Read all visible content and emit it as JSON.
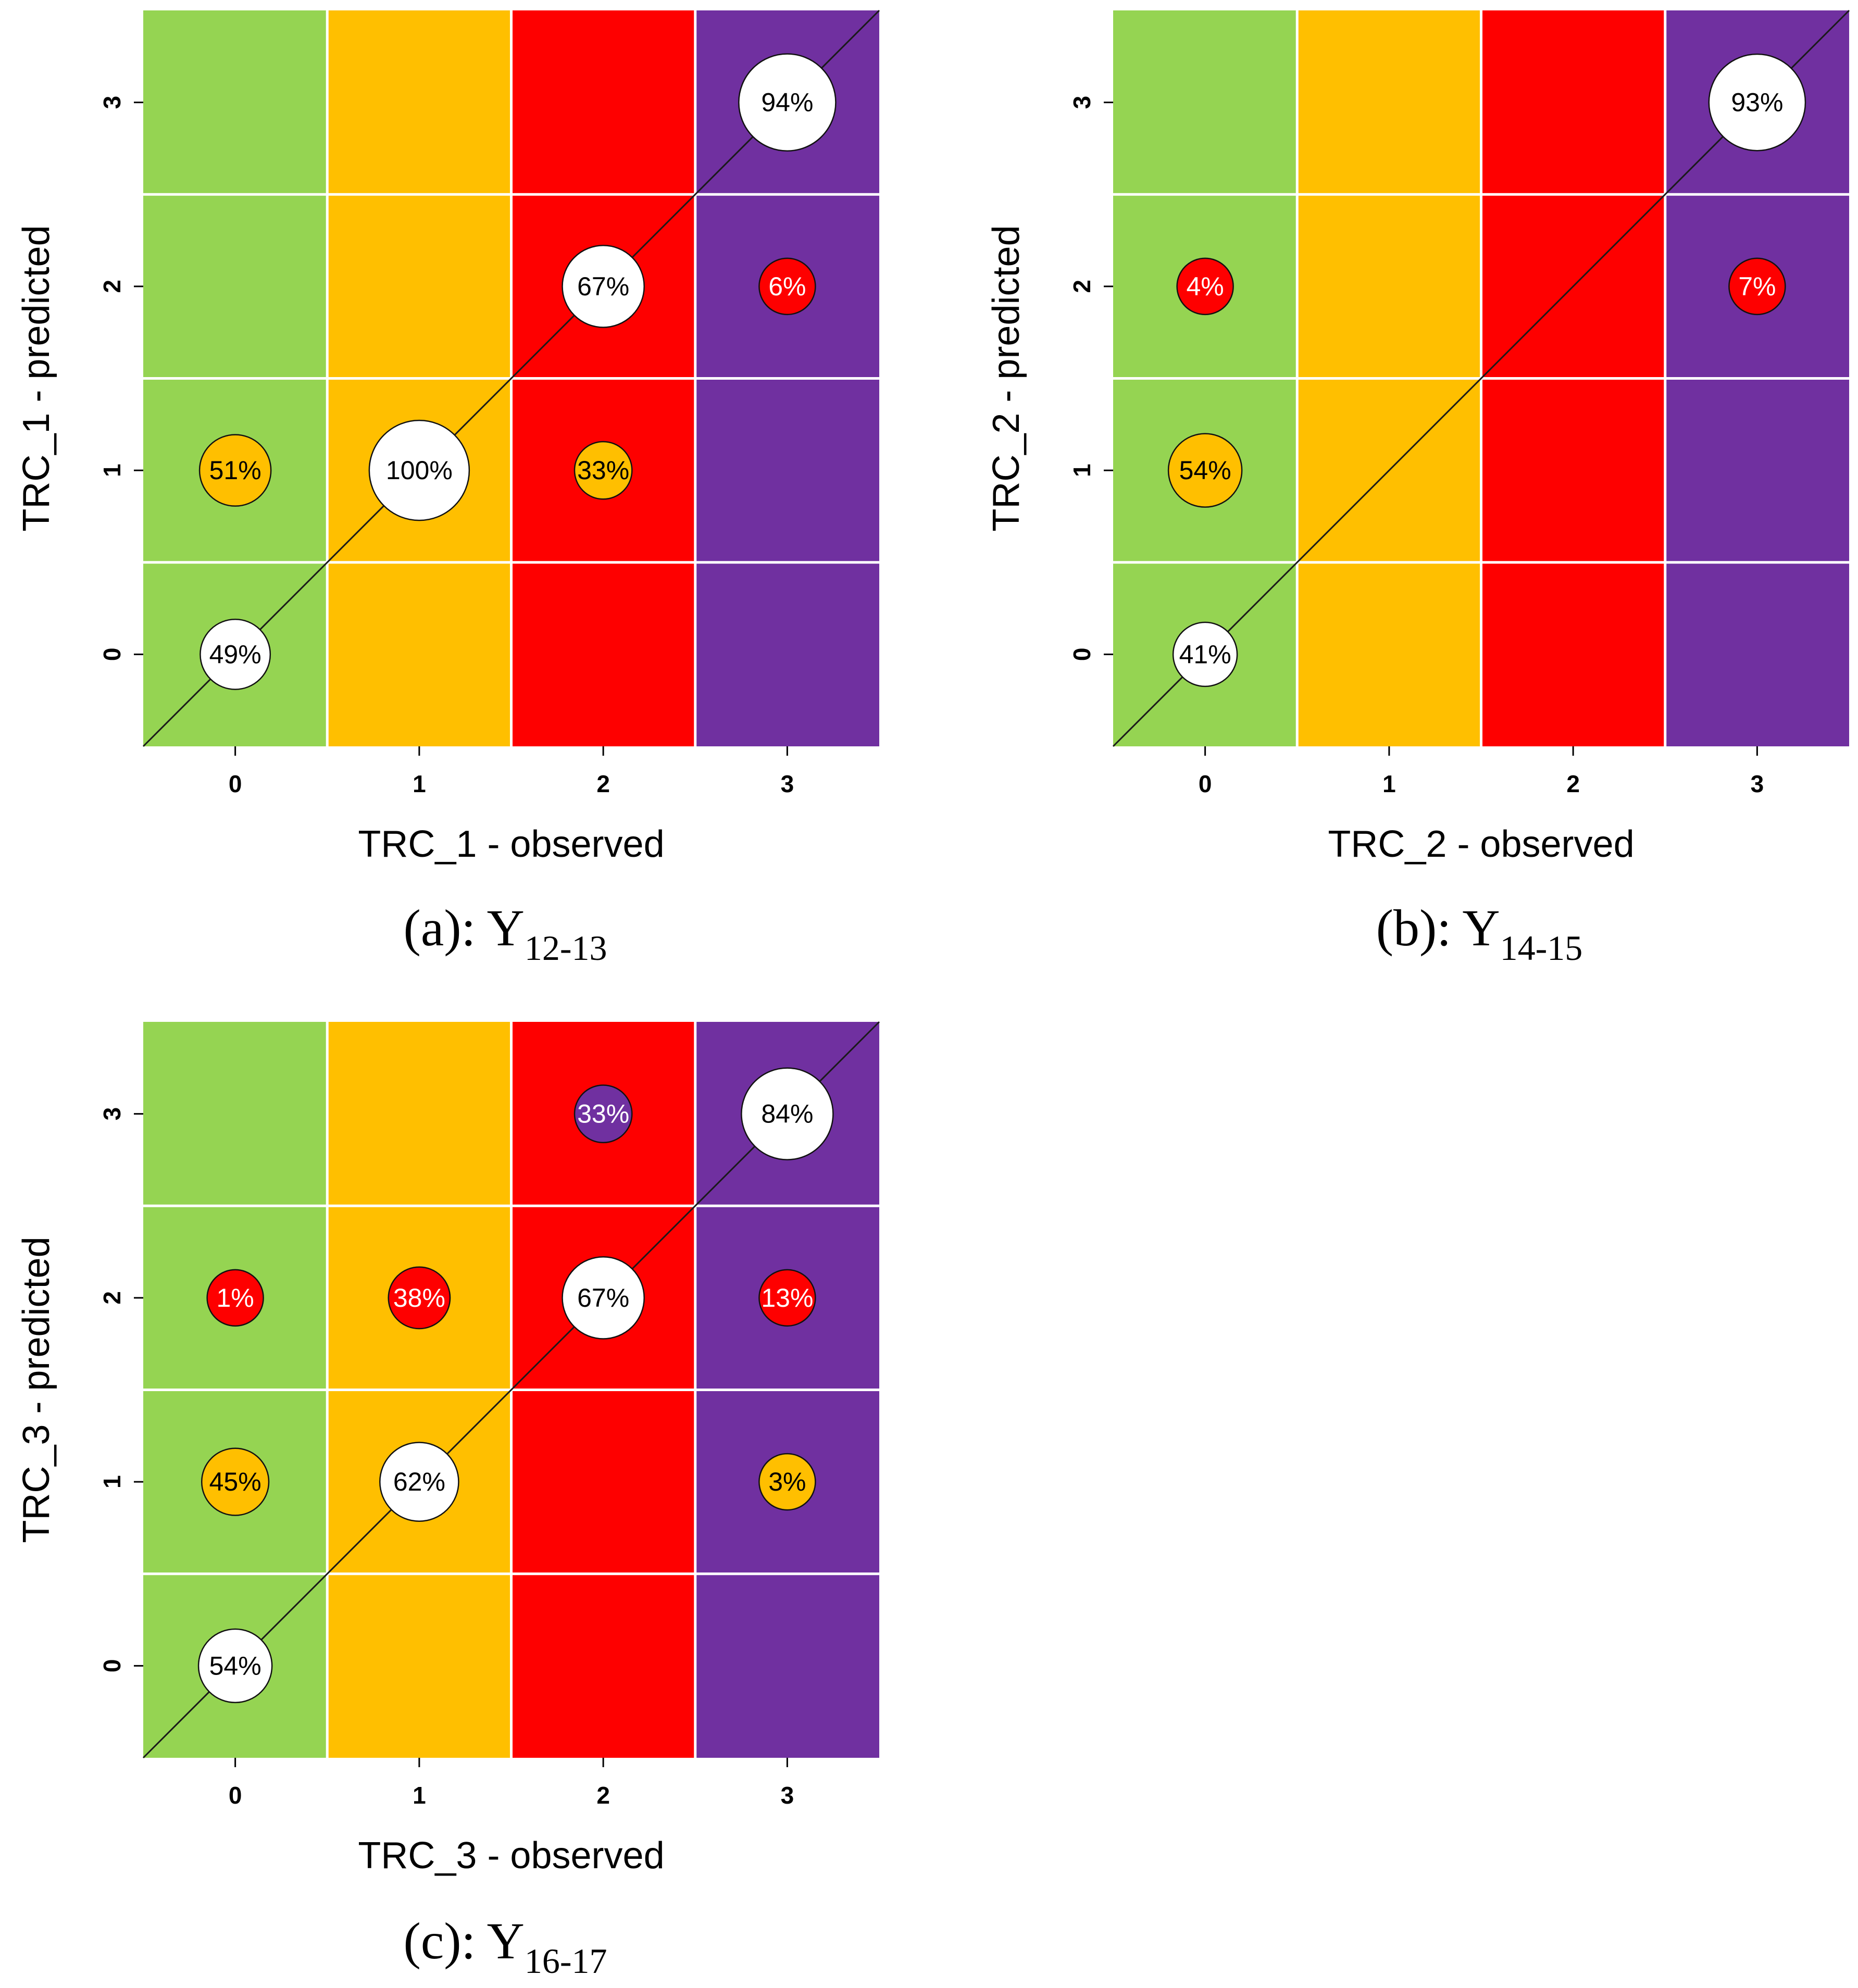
{
  "colors": {
    "0": "#95d452",
    "1": "#ffbf00",
    "2": "#fe0000",
    "3": "#7030a0",
    "white": "#ffffff",
    "gridline": "#ffffff"
  },
  "chart_data": [
    {
      "type": "heatmap",
      "caption": "(a): Y",
      "caption_sub": "12-13",
      "xlabel": "TRC_1 - observed",
      "ylabel": "TRC_1 - predicted",
      "x_ticks": [
        "0",
        "1",
        "2",
        "3"
      ],
      "y_ticks": [
        "0",
        "1",
        "2",
        "3"
      ],
      "xlim": [
        -0.5,
        3.5
      ],
      "ylim": [
        -0.5,
        3.5
      ],
      "column_fill_by_observed_class": [
        "0",
        "1",
        "2",
        "3"
      ],
      "diagonal_line": true,
      "points": [
        {
          "observed": 0,
          "predicted": 0,
          "value": 49,
          "label": "49%",
          "fill": "white"
        },
        {
          "observed": 0,
          "predicted": 1,
          "value": 51,
          "label": "51%",
          "fill": "1"
        },
        {
          "observed": 1,
          "predicted": 1,
          "value": 100,
          "label": "100%",
          "fill": "white"
        },
        {
          "observed": 2,
          "predicted": 1,
          "value": 33,
          "label": "33%",
          "fill": "1"
        },
        {
          "observed": 2,
          "predicted": 2,
          "value": 67,
          "label": "67%",
          "fill": "white"
        },
        {
          "observed": 3,
          "predicted": 2,
          "value": 6,
          "label": "6%",
          "fill": "2"
        },
        {
          "observed": 3,
          "predicted": 3,
          "value": 94,
          "label": "94%",
          "fill": "white"
        }
      ]
    },
    {
      "type": "heatmap",
      "caption": "(b): Y",
      "caption_sub": "14-15",
      "xlabel": "TRC_2 - observed",
      "ylabel": "TRC_2 - predicted",
      "x_ticks": [
        "0",
        "1",
        "2",
        "3"
      ],
      "y_ticks": [
        "0",
        "1",
        "2",
        "3"
      ],
      "xlim": [
        -0.5,
        3.5
      ],
      "ylim": [
        -0.5,
        3.5
      ],
      "column_fill_by_observed_class": [
        "0",
        "1",
        "2",
        "3"
      ],
      "diagonal_line": true,
      "points": [
        {
          "observed": 0,
          "predicted": 0,
          "value": 41,
          "label": "41%",
          "fill": "white"
        },
        {
          "observed": 0,
          "predicted": 1,
          "value": 54,
          "label": "54%",
          "fill": "1"
        },
        {
          "observed": 0,
          "predicted": 2,
          "value": 4,
          "label": "4%",
          "fill": "2"
        },
        {
          "observed": 3,
          "predicted": 2,
          "value": 7,
          "label": "7%",
          "fill": "2"
        },
        {
          "observed": 3,
          "predicted": 3,
          "value": 93,
          "label": "93%",
          "fill": "white"
        }
      ]
    },
    {
      "type": "heatmap",
      "caption": "(c): Y",
      "caption_sub": "16-17",
      "xlabel": "TRC_3 - observed",
      "ylabel": "TRC_3 - predicted",
      "x_ticks": [
        "0",
        "1",
        "2",
        "3"
      ],
      "y_ticks": [
        "0",
        "1",
        "2",
        "3"
      ],
      "xlim": [
        -0.5,
        3.5
      ],
      "ylim": [
        -0.5,
        3.5
      ],
      "column_fill_by_observed_class": [
        "0",
        "1",
        "2",
        "3"
      ],
      "diagonal_line": true,
      "points": [
        {
          "observed": 0,
          "predicted": 0,
          "value": 54,
          "label": "54%",
          "fill": "white"
        },
        {
          "observed": 0,
          "predicted": 1,
          "value": 45,
          "label": "45%",
          "fill": "1"
        },
        {
          "observed": 0,
          "predicted": 2,
          "value": 1,
          "label": "1%",
          "fill": "2"
        },
        {
          "observed": 1,
          "predicted": 1,
          "value": 62,
          "label": "62%",
          "fill": "white"
        },
        {
          "observed": 1,
          "predicted": 2,
          "value": 38,
          "label": "38%",
          "fill": "2"
        },
        {
          "observed": 2,
          "predicted": 2,
          "value": 67,
          "label": "67%",
          "fill": "white"
        },
        {
          "observed": 2,
          "predicted": 3,
          "value": 33,
          "label": "33%",
          "fill": "3"
        },
        {
          "observed": 3,
          "predicted": 1,
          "value": 3,
          "label": "3%",
          "fill": "1"
        },
        {
          "observed": 3,
          "predicted": 2,
          "value": 13,
          "label": "13%",
          "fill": "2"
        },
        {
          "observed": 3,
          "predicted": 3,
          "value": 84,
          "label": "84%",
          "fill": "white"
        }
      ]
    }
  ]
}
